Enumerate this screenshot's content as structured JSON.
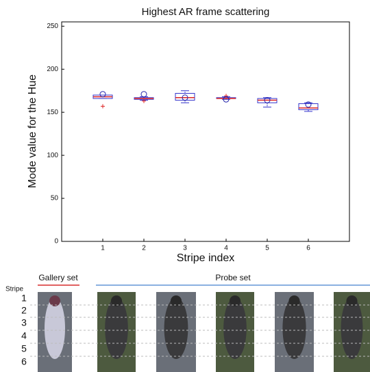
{
  "chart_data": {
    "type": "box",
    "title": "Highest AR frame scattering",
    "x_label": "Stripe index",
    "y_label": "Mode value for the Hue",
    "categories": [
      "1",
      "2",
      "3",
      "4",
      "5",
      "6"
    ],
    "boxes": [
      {
        "min": 166,
        "q1": 166,
        "median": 168,
        "q3": 170,
        "max": 170
      },
      {
        "min": 164,
        "q1": 165,
        "median": 166,
        "q3": 167,
        "max": 168
      },
      {
        "min": 161,
        "q1": 164,
        "median": 167,
        "q3": 172,
        "max": 175
      },
      {
        "min": 165,
        "q1": 166,
        "median": 166,
        "q3": 167,
        "max": 168
      },
      {
        "min": 156,
        "q1": 161,
        "median": 164,
        "q3": 166,
        "max": 167
      },
      {
        "min": 151,
        "q1": 153,
        "median": 155,
        "q3": 160,
        "max": 161
      }
    ],
    "circles": [
      171,
      171,
      167,
      165,
      164,
      159
    ],
    "outliers": [
      157,
      163,
      null,
      169,
      null,
      null
    ],
    "box_color": "#3333cc",
    "median_color": "#dd2222",
    "outlier_color": "#dd2222",
    "circle_color": "#2222aa",
    "ylim": [
      0,
      255
    ],
    "yticks": [
      0,
      50,
      100,
      150,
      200,
      250
    ]
  },
  "images": {
    "gallery_label": "Gallery set",
    "probe_label": "Probe set",
    "stripe_label": "Stripe",
    "stripes": [
      "1",
      "2",
      "3",
      "4",
      "5",
      "6"
    ]
  }
}
